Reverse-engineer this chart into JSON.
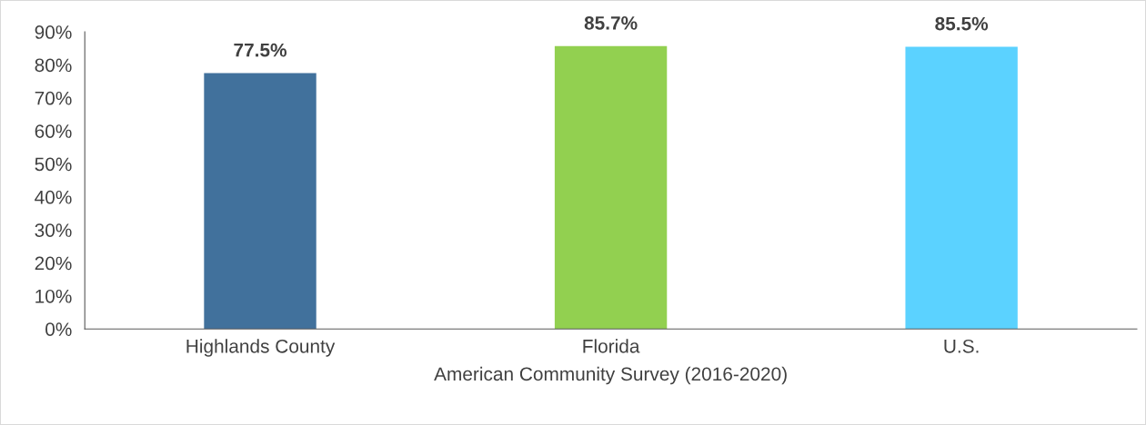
{
  "chart_data": {
    "type": "bar",
    "categories": [
      "Highlands County",
      "Florida",
      "U.S."
    ],
    "values": [
      77.5,
      85.7,
      85.5
    ],
    "colors": [
      "#41719c",
      "#92d050",
      "#5bd2ff"
    ],
    "value_labels": [
      "77.5%",
      "85.7%",
      "85.5%"
    ],
    "xlabel": "American Community Survey (2016-2020)",
    "ylim": [
      0,
      90
    ],
    "yticks": [
      {
        "value": 0,
        "label": "0%"
      },
      {
        "value": 10,
        "label": "10%"
      },
      {
        "value": 20,
        "label": "20%"
      },
      {
        "value": 30,
        "label": "30%"
      },
      {
        "value": 40,
        "label": "40%"
      },
      {
        "value": 50,
        "label": "50%"
      },
      {
        "value": 60,
        "label": "60%"
      },
      {
        "value": 70,
        "label": "70%"
      },
      {
        "value": 80,
        "label": "80%"
      },
      {
        "value": 90,
        "label": "90%"
      }
    ],
    "grid": false
  }
}
